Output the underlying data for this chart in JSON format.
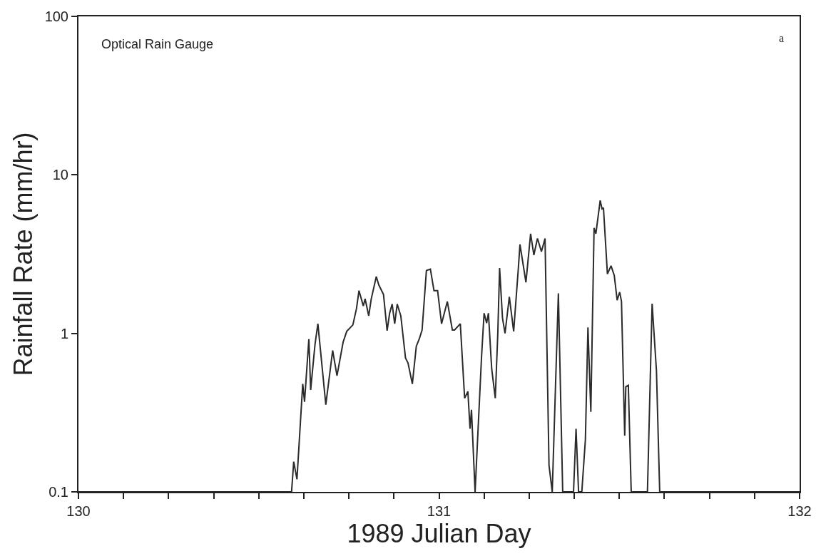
{
  "chart_data": {
    "type": "line",
    "xlabel": "1989 Julian Day",
    "ylabel": "Rainfall Rate (mm/hr)",
    "annotations": [
      "Optical Rain Gauge",
      "a"
    ],
    "log": "y",
    "marker": "none",
    "line_style": "solid",
    "xlim": [
      130,
      132
    ],
    "ylim": [
      0.1,
      100
    ],
    "xticks": [
      130,
      {
        "value": 130.125,
        "label": null
      },
      {
        "value": 130.25,
        "label": null
      },
      {
        "value": 130.375,
        "label": null
      },
      {
        "value": 130.5,
        "label": null
      },
      {
        "value": 130.625,
        "label": null
      },
      {
        "value": 130.75,
        "label": null
      },
      {
        "value": 130.875,
        "label": null
      },
      131,
      {
        "value": 131.125,
        "label": null
      },
      {
        "value": 131.25,
        "label": null
      },
      {
        "value": 131.375,
        "label": null
      },
      {
        "value": 131.5,
        "label": null
      },
      {
        "value": 131.625,
        "label": null
      },
      {
        "value": 131.75,
        "label": null
      },
      {
        "value": 131.875,
        "label": null
      },
      132
    ],
    "yticks": [
      0.1,
      1,
      10,
      100
    ],
    "series": [
      {
        "color": "#2b2b2b",
        "x": [
          130,
          130.591,
          130.597,
          130.606,
          130.622,
          130.627,
          130.639,
          130.644,
          130.656,
          130.664,
          130.686,
          130.705,
          130.717,
          130.734,
          130.744,
          130.761,
          130.771,
          130.778,
          130.79,
          130.795,
          130.805,
          130.812,
          130.826,
          130.833,
          130.846,
          130.856,
          130.863,
          130.87,
          130.877,
          130.884,
          130.894,
          130.907,
          130.914,
          130.926,
          130.937,
          130.945,
          130.953,
          130.965,
          130.976,
          130.986,
          130.996,
          131.007,
          131.023,
          131.037,
          131.043,
          131.059,
          131.071,
          131.08,
          131.086,
          131.09,
          131.1,
          131.118,
          131.125,
          131.132,
          131.137,
          131.146,
          131.156,
          131.163,
          131.168,
          131.176,
          131.183,
          131.195,
          131.207,
          131.22,
          131.2245,
          131.241,
          131.254,
          131.263,
          131.273,
          131.284,
          131.294,
          131.295,
          131.305,
          131.314,
          131.331,
          131.343,
          131.373,
          131.38,
          131.387,
          131.396,
          131.406,
          131.413,
          131.421,
          131.43,
          131.435,
          131.447,
          131.452,
          131.456,
          131.467,
          131.477,
          131.486,
          131.494,
          131.501,
          131.506,
          131.515,
          131.518,
          131.525,
          131.533,
          131.578,
          131.591,
          131.603,
          131.612,
          132
        ],
        "values": [
          0.1,
          0.1,
          0.155,
          0.12,
          0.48,
          0.37,
          0.92,
          0.44,
          0.85,
          1.15,
          0.355,
          0.78,
          0.54,
          0.88,
          1.03,
          1.13,
          1.43,
          1.86,
          1.49,
          1.65,
          1.29,
          1.65,
          2.28,
          2.02,
          1.76,
          1.04,
          1.34,
          1.53,
          1.15,
          1.53,
          1.29,
          0.7,
          0.65,
          0.48,
          0.83,
          0.92,
          1.05,
          2.49,
          2.54,
          1.86,
          1.86,
          1.15,
          1.59,
          1.05,
          1.05,
          1.15,
          0.39,
          0.43,
          0.25,
          0.33,
          0.1,
          0.72,
          1.34,
          1.16,
          1.34,
          0.6,
          0.39,
          1.0,
          2.58,
          1.25,
          1.0,
          1.7,
          1.03,
          2.58,
          3.64,
          2.1,
          4.25,
          3.12,
          3.97,
          3.28,
          3.97,
          2.96,
          0.147,
          0.1,
          1.79,
          0.1,
          0.1,
          0.25,
          0.1,
          0.1,
          0.215,
          1.09,
          0.32,
          4.63,
          4.25,
          6.9,
          6.1,
          6.2,
          2.37,
          2.67,
          2.32,
          1.62,
          1.82,
          1.59,
          0.226,
          0.46,
          0.47,
          0.1,
          0.1,
          1.54,
          0.58,
          0.1,
          0.1
        ]
      }
    ]
  }
}
